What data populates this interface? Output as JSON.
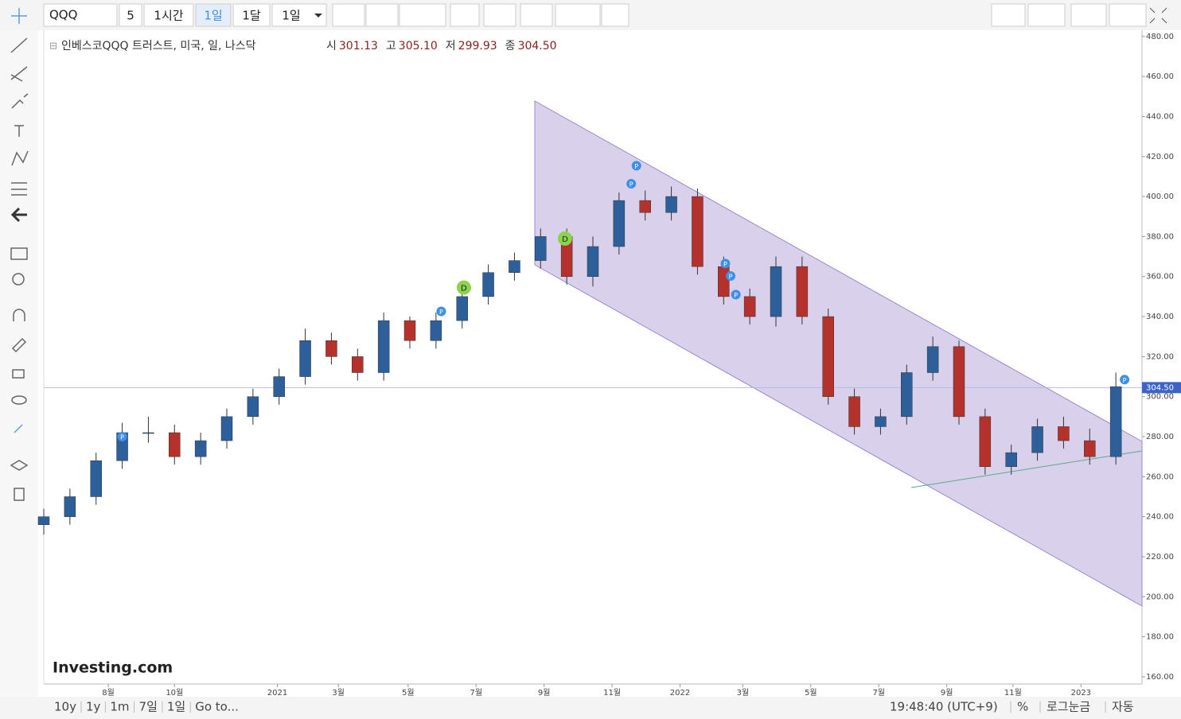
{
  "toolbar": {
    "symbol": "QQQ",
    "buttons": [
      "5",
      "1시간",
      "1일",
      "1달",
      "1일"
    ]
  },
  "chart_data": {
    "type": "candlestick",
    "legend_title": "인베스코QQQ 트러스트, 미국, 일, 나스닥",
    "ohlc_header": [
      {
        "label": "시",
        "value": "301.13"
      },
      {
        "label": "고",
        "value": "305.10"
      },
      {
        "label": "저",
        "value": "299.93"
      },
      {
        "label": "종",
        "value": "304.50"
      }
    ],
    "x": [
      0,
      15,
      30,
      45,
      60,
      75,
      90,
      105,
      120,
      135,
      150,
      165,
      180,
      195,
      210,
      225,
      240,
      255,
      270,
      285,
      300,
      315,
      330,
      345,
      360,
      375,
      390,
      405,
      420,
      435,
      450,
      465,
      480,
      495,
      510,
      525,
      540,
      555,
      570,
      585,
      600,
      615
    ],
    "open": [
      236,
      240,
      250,
      268,
      282,
      282,
      270,
      278,
      290,
      300,
      310,
      328,
      320,
      312,
      338,
      328,
      338,
      350,
      362,
      368,
      380,
      360,
      375,
      398,
      392,
      400,
      365,
      350,
      340,
      365,
      340,
      300,
      285,
      290,
      312,
      325,
      290,
      265,
      272,
      285,
      278,
      270
    ],
    "high": [
      244,
      254,
      272,
      287,
      290,
      286,
      282,
      294,
      304,
      314,
      334,
      332,
      324,
      342,
      340,
      342,
      354,
      366,
      372,
      384,
      384,
      380,
      402,
      403,
      405,
      404,
      370,
      354,
      370,
      370,
      344,
      304,
      294,
      316,
      330,
      328,
      294,
      276,
      289,
      290,
      284,
      312
    ],
    "low": [
      231,
      236,
      246,
      264,
      277,
      266,
      266,
      274,
      286,
      296,
      306,
      316,
      308,
      308,
      324,
      324,
      334,
      346,
      358,
      364,
      356,
      355,
      371,
      388,
      388,
      361,
      346,
      336,
      335,
      336,
      296,
      281,
      281,
      286,
      308,
      286,
      261,
      261,
      268,
      274,
      266,
      266
    ],
    "close": [
      240,
      250,
      268,
      282,
      282,
      270,
      278,
      290,
      300,
      310,
      328,
      320,
      312,
      338,
      328,
      338,
      350,
      362,
      368,
      380,
      360,
      375,
      398,
      392,
      400,
      365,
      350,
      340,
      365,
      340,
      300,
      285,
      290,
      312,
      325,
      290,
      265,
      272,
      285,
      278,
      270,
      305
    ],
    "up_color": "#2d5f9a",
    "down_color": "#b5312b",
    "xlim": [
      0,
      630
    ],
    "xticks": [
      {
        "value": 37,
        "label": "8월"
      },
      {
        "value": 75,
        "label": "10월"
      },
      {
        "value": 134,
        "label": "2021"
      },
      {
        "value": 169,
        "label": "3월"
      },
      {
        "value": 209,
        "label": "5월"
      },
      {
        "value": 248,
        "label": "7월"
      },
      {
        "value": 287,
        "label": "9월"
      },
      {
        "value": 326,
        "label": "11월"
      },
      {
        "value": 365,
        "label": "2022"
      },
      {
        "value": 401,
        "label": "3월"
      },
      {
        "value": 440,
        "label": "5월"
      },
      {
        "value": 479,
        "label": "7월"
      },
      {
        "value": 518,
        "label": "9월"
      },
      {
        "value": 556,
        "label": "11월"
      },
      {
        "value": 595,
        "label": "2023"
      }
    ],
    "ylim": [
      156.4,
      483.1
    ],
    "yticks": [
      {
        "value": 160,
        "label": "160.00"
      },
      {
        "value": 180,
        "label": "180.00"
      },
      {
        "value": 200,
        "label": "200.00"
      },
      {
        "value": 220,
        "label": "220.00"
      },
      {
        "value": 240,
        "label": "240.00"
      },
      {
        "value": 260,
        "label": "260.00"
      },
      {
        "value": 280,
        "label": "280.00"
      },
      {
        "value": 300,
        "label": "300.00"
      },
      {
        "value": 320,
        "label": "320.00"
      },
      {
        "value": 340,
        "label": "340.00"
      },
      {
        "value": 360,
        "label": "360.00"
      },
      {
        "value": 380,
        "label": "380.00"
      },
      {
        "value": 400,
        "label": "400.00"
      },
      {
        "value": 420,
        "label": "420.00"
      },
      {
        "value": 440,
        "label": "440.00"
      },
      {
        "value": 460,
        "label": "460.00"
      },
      {
        "value": 480,
        "label": "480.00"
      }
    ],
    "last_price": {
      "value": 304.5,
      "label": "304.50"
    },
    "markers": [
      {
        "label": "P",
        "x": 45,
        "price": 280,
        "color": "#3d8fe8"
      },
      {
        "label": "P",
        "x": 228,
        "price": 342.6,
        "color": "#3d8fe8"
      },
      {
        "label": "D",
        "x": 241,
        "price": 354.5,
        "color": "#8bd34a"
      },
      {
        "label": "D",
        "x": 299,
        "price": 379,
        "color": "#8bd34a"
      },
      {
        "label": "P",
        "x": 337,
        "price": 406.4,
        "color": "#3d8fe8"
      },
      {
        "label": "P",
        "x": 340,
        "price": 415.4,
        "color": "#3d8fe8"
      },
      {
        "label": "P",
        "x": 391,
        "price": 366.5,
        "color": "#3d8fe8"
      },
      {
        "label": "P",
        "x": 394,
        "price": 360.3,
        "color": "#3d8fe8"
      },
      {
        "label": "P",
        "x": 397,
        "price": 351,
        "color": "#3d8fe8"
      },
      {
        "label": "P",
        "x": 620,
        "price": 308.5,
        "color": "#3d8fe8"
      }
    ],
    "watermark": "Investing.com"
  },
  "footer": {
    "ranges": [
      "10y",
      "1y",
      "1m",
      "7일",
      "1일",
      "Go to..."
    ],
    "clock": "19:48:40 (UTC+9)",
    "options": [
      "%",
      "로그눈금",
      "자동"
    ]
  }
}
